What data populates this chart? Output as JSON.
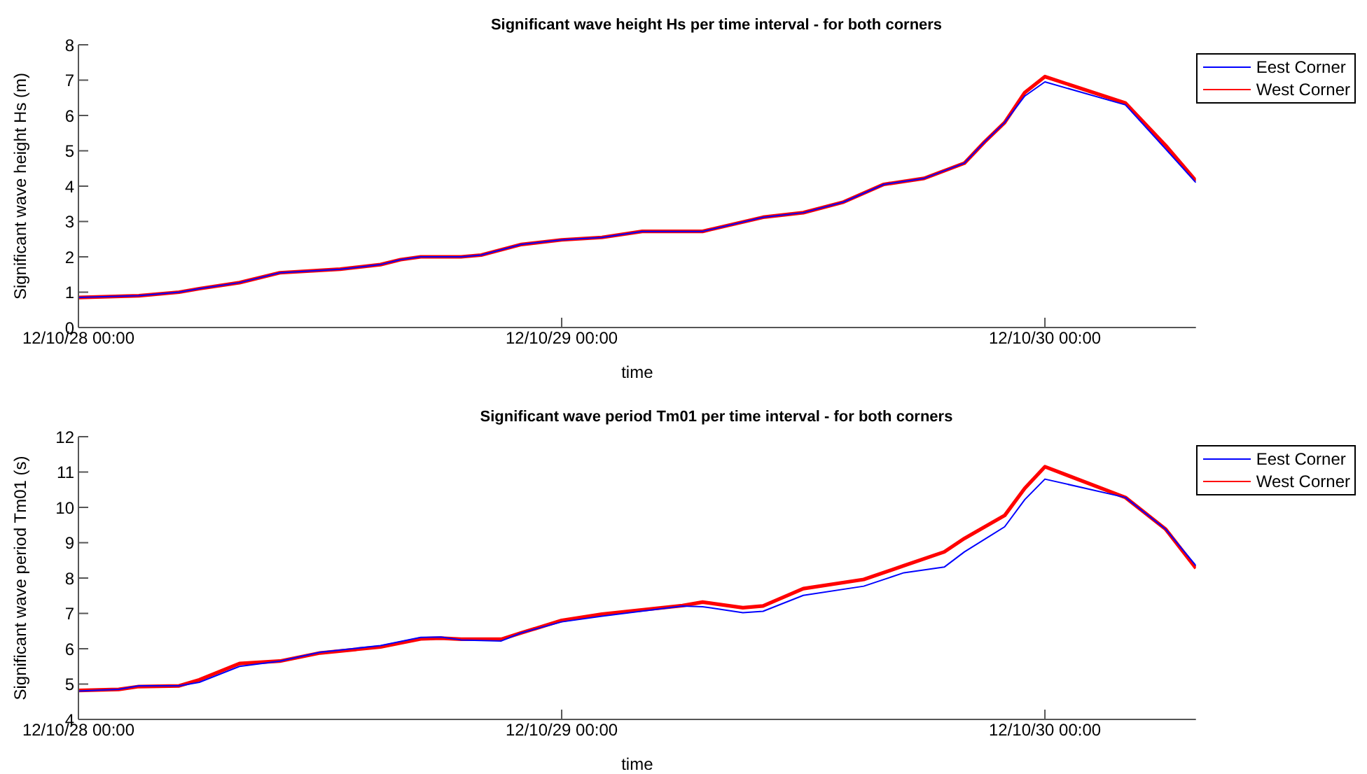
{
  "chart_data": [
    {
      "type": "line",
      "title": "Significant wave height Hs per time interval - for both corners",
      "xlabel": "time",
      "ylabel": "Significant wave height Hs (m)",
      "x": [
        "--10-28T00:00",
        "--10-28T03:00",
        "--10-28T05:00",
        "--10-28T06:00",
        "--10-28T08:00",
        "--10-28T10:00",
        "--10-28T13:00",
        "--10-28T15:00",
        "--10-28T16:00",
        "--10-28T17:00",
        "--10-28T19:00",
        "--10-28T20:00",
        "--10-28T22:00",
        "--10-29T00:00",
        "--10-29T02:00",
        "--10-29T04:00",
        "--10-29T07:00",
        "--10-29T10:00",
        "--10-29T12:00",
        "--10-29T14:00",
        "--10-29T16:00",
        "--10-29T18:00",
        "--10-29T20:00",
        "--10-29T21:00",
        "--10-29T22:00",
        "--10-29T23:00",
        "--10-30T00:00",
        "--10-30T04:00",
        "--10-30T06:00",
        "--10-30T07:30"
      ],
      "series": [
        {
          "name": "Eest Corner",
          "color": "#0000ff",
          "values": [
            0.85,
            0.9,
            1.0,
            1.1,
            1.27,
            1.55,
            1.65,
            1.78,
            1.92,
            2.0,
            2.0,
            2.05,
            2.35,
            2.48,
            2.55,
            2.72,
            2.72,
            3.12,
            3.25,
            3.55,
            4.05,
            4.22,
            4.65,
            5.25,
            5.8,
            6.55,
            6.95,
            6.3,
            5.05,
            4.1
          ]
        },
        {
          "name": "West Corner",
          "color": "#ff0000",
          "values": [
            0.85,
            0.9,
            1.0,
            1.1,
            1.27,
            1.55,
            1.65,
            1.78,
            1.92,
            2.0,
            2.0,
            2.05,
            2.35,
            2.48,
            2.55,
            2.72,
            2.72,
            3.12,
            3.25,
            3.55,
            4.05,
            4.22,
            4.65,
            5.25,
            5.8,
            6.65,
            7.1,
            6.35,
            5.15,
            4.15
          ]
        }
      ],
      "xlim": [
        "--10-28T00:00",
        "--10-30T07:30"
      ],
      "xticks": [
        {
          "value": "--10-28T00:00",
          "label": "12/10/28 00:00"
        },
        {
          "value": "--10-29T00:00",
          "label": "12/10/29 00:00"
        },
        {
          "value": "--10-30T00:00",
          "label": "12/10/30 00:00"
        }
      ],
      "ylim": [
        0,
        8
      ],
      "yticks": [
        0,
        1,
        2,
        3,
        4,
        5,
        6,
        7,
        8
      ],
      "legend": "top right"
    },
    {
      "type": "line",
      "title": "Significant wave period Tm01 per time interval - for both corners",
      "xlabel": "time",
      "ylabel": "Significant wave period Tm01 (s)",
      "x": [
        "--10-28T00:00",
        "--10-28T02:00",
        "--10-28T03:00",
        "--10-28T05:00",
        "--10-28T06:00",
        "--10-28T08:00",
        "--10-28T10:00",
        "--10-28T12:00",
        "--10-28T15:00",
        "--10-28T17:00",
        "--10-28T18:00",
        "--10-28T19:00",
        "--10-28T21:00",
        "--10-28T22:00",
        "--10-29T00:00",
        "--10-29T02:00",
        "--10-29T06:00",
        "--10-29T07:00",
        "--10-29T09:00",
        "--10-29T10:00",
        "--10-29T12:00",
        "--10-29T15:00",
        "--10-29T17:00",
        "--10-29T19:00",
        "--10-29T20:00",
        "--10-29T22:00",
        "--10-29T23:00",
        "--10-30T00:00",
        "--10-30T04:00",
        "--10-30T06:00",
        "--10-30T07:30"
      ],
      "series": [
        {
          "name": "Eest Corner",
          "color": "#0000ff",
          "values": [
            4.8,
            4.85,
            4.95,
            4.95,
            5.05,
            5.5,
            5.65,
            5.9,
            6.09,
            6.32,
            6.33,
            6.25,
            6.22,
            6.45,
            6.76,
            6.92,
            7.21,
            7.19,
            7.02,
            7.06,
            7.51,
            7.77,
            8.15,
            8.31,
            8.74,
            9.45,
            10.22,
            10.8,
            10.28,
            9.38,
            8.35
          ]
        },
        {
          "name": "West Corner",
          "color": "#ff0000",
          "values": [
            4.82,
            4.85,
            4.93,
            4.95,
            5.12,
            5.58,
            5.65,
            5.88,
            6.05,
            6.28,
            6.3,
            6.27,
            6.27,
            6.45,
            6.8,
            6.98,
            7.22,
            7.32,
            7.16,
            7.21,
            7.7,
            7.96,
            8.35,
            8.74,
            9.12,
            9.77,
            10.54,
            11.15,
            10.28,
            9.38,
            8.28
          ]
        }
      ],
      "xlim": [
        "--10-28T00:00",
        "--10-30T07:30"
      ],
      "xticks": [
        {
          "value": "--10-28T00:00",
          "label": "12/10/28 00:00"
        },
        {
          "value": "--10-29T00:00",
          "label": "12/10/29 00:00"
        },
        {
          "value": "--10-30T00:00",
          "label": "12/10/30 00:00"
        }
      ],
      "ylim": [
        4,
        12
      ],
      "yticks": [
        4,
        5,
        6,
        7,
        8,
        9,
        10,
        11,
        12
      ],
      "legend": "top right"
    }
  ]
}
